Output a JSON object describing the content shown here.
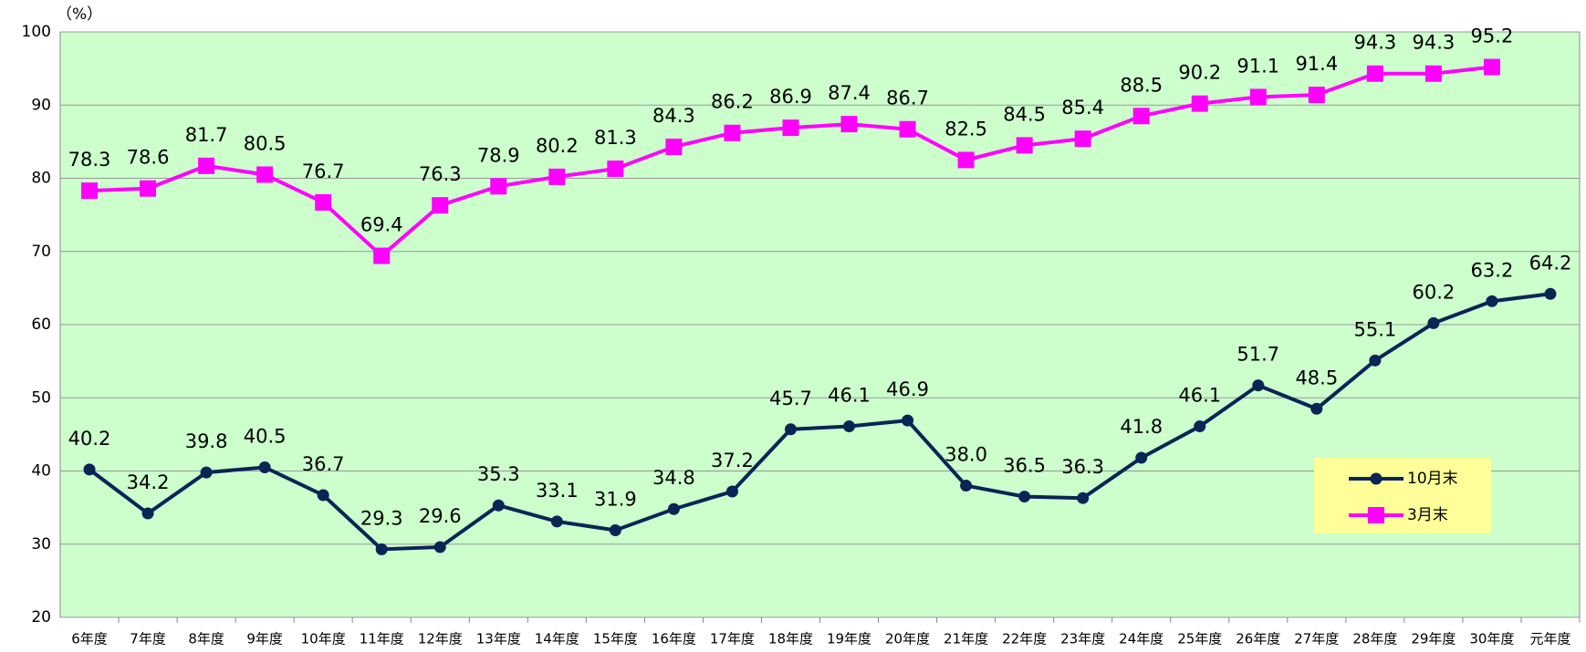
{
  "chart_data": {
    "type": "line",
    "y_unit": "（%）",
    "categories": [
      "6年度",
      "7年度",
      "8年度",
      "9年度",
      "10年度",
      "11年度",
      "12年度",
      "13年度",
      "14年度",
      "15年度",
      "16年度",
      "17年度",
      "18年度",
      "19年度",
      "20年度",
      "21年度",
      "22年度",
      "23年度",
      "24年度",
      "25年度",
      "26年度",
      "27年度",
      "28年度",
      "29年度",
      "30年度",
      "元年度"
    ],
    "series": [
      {
        "name": "10月末",
        "color": "#0a2456",
        "marker": "circle",
        "values": [
          40.2,
          34.2,
          39.8,
          40.5,
          36.7,
          29.3,
          29.6,
          35.3,
          33.1,
          31.9,
          34.8,
          37.2,
          45.7,
          46.1,
          46.9,
          38.0,
          36.5,
          36.3,
          41.8,
          46.1,
          51.7,
          48.5,
          55.1,
          60.2,
          63.2,
          64.2
        ],
        "value_labels": [
          "40.2",
          "34.2",
          "39.8",
          "40.5",
          "36.7",
          "29.3",
          "29.6",
          "35.3",
          "33.1",
          "31.9",
          "34.8",
          "37.2",
          "45.7",
          "46.1",
          "46.9",
          "38.0",
          "36.5",
          "36.3",
          "41.8",
          "46.1",
          "51.7",
          "48.5",
          "55.1",
          "60.2",
          "63.2",
          "64.2"
        ]
      },
      {
        "name": "3月末",
        "color": "#ff00ff",
        "marker": "square",
        "values": [
          78.3,
          78.6,
          81.7,
          80.5,
          76.7,
          69.4,
          76.3,
          78.9,
          80.2,
          81.3,
          84.3,
          86.2,
          86.9,
          87.4,
          86.7,
          82.5,
          84.5,
          85.4,
          88.5,
          90.2,
          91.1,
          91.4,
          94.3,
          94.3,
          95.2,
          null
        ],
        "value_labels": [
          "78.3",
          "78.6",
          "81.7",
          "80.5",
          "76.7",
          "69.4",
          "76.3",
          "78.9",
          "80.2",
          "81.3",
          "84.3",
          "86.2",
          "86.9",
          "87.4",
          "86.7",
          "82.5",
          "84.5",
          "85.4",
          "88.5",
          "90.2",
          "91.1",
          "91.4",
          "94.3",
          "94.3",
          "95.2",
          null
        ]
      }
    ],
    "ylim": [
      20,
      100
    ],
    "yticks": [
      20,
      30,
      40,
      50,
      60,
      70,
      80,
      90,
      100
    ],
    "grid": true,
    "legend": "lower right",
    "background": "#ccffcc"
  }
}
